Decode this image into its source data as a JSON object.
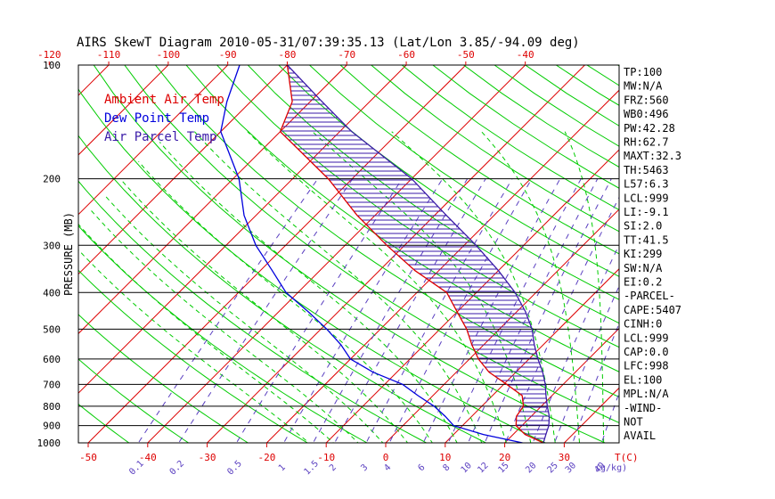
{
  "title": "AIRS SkewT Diagram 2010-05-31/07:39:35.13 (Lat/Lon 3.85/-94.09 deg)",
  "colors": {
    "background": "#ffffff",
    "isobar": "#000000",
    "isotherm": "#dd0000",
    "dry_adiabat": "#00cc00",
    "moist_adiabat": "#00cc00",
    "mixing_ratio": "#5a3fc0",
    "ambient": "#dd0000",
    "dewpoint": "#0000dd",
    "parcel": "#3a1aa8",
    "hatch": "#3a1aa8",
    "axis_text": "#000000",
    "temp_labels": "#dd0000",
    "mixing_labels": "#5a3fc0"
  },
  "chart_data": {
    "type": "line",
    "title": "AIRS SkewT Diagram 2010-05-31/07:39:35.13 (Lat/Lon 3.85/-94.09 deg)",
    "ylabel": "PRESSURE (MB)",
    "xlabel": "T(C)",
    "y_scale": "log",
    "ylim": [
      1000,
      100
    ],
    "pressure_ticks": [
      100,
      200,
      300,
      400,
      500,
      600,
      700,
      800,
      900,
      1000
    ],
    "bottom_temp_ticks": [
      -50,
      -40,
      -30,
      -20,
      -10,
      0,
      10,
      20,
      30
    ],
    "bottom_temp_label": "T(C)",
    "top_temp_ticks": [
      -120,
      -110,
      -100,
      -90,
      -80,
      -70,
      -60,
      -50,
      -40
    ],
    "mixing_ratio_ticks": [
      "0.1",
      "0.2",
      "0.5",
      "1",
      "1.5",
      "2",
      "3",
      "4",
      "6",
      "8",
      "10",
      "12",
      "15",
      "20",
      "25",
      "30",
      "40"
    ],
    "mixing_ratio_unit": "(g/kg)",
    "legend": [
      {
        "name": "Ambient Air Temp",
        "color": "#dd0000"
      },
      {
        "name": "Dew Point Temp",
        "color": "#0000dd"
      },
      {
        "name": "Air Parcel Temp",
        "color": "#3a1aa8"
      }
    ],
    "legend_position": "top-left",
    "grid": true,
    "series": [
      {
        "name": "Ambient Air Temp",
        "points": [
          {
            "p": 1000,
            "t": 26.5
          },
          {
            "p": 950,
            "t": 22.0
          },
          {
            "p": 900,
            "t": 19.0
          },
          {
            "p": 850,
            "t": 17.5
          },
          {
            "p": 800,
            "t": 17.0
          },
          {
            "p": 750,
            "t": 15.0
          },
          {
            "p": 700,
            "t": 10.5
          },
          {
            "p": 650,
            "t": 5.5
          },
          {
            "p": 600,
            "t": 1.5
          },
          {
            "p": 550,
            "t": -2.0
          },
          {
            "p": 500,
            "t": -5.5
          },
          {
            "p": 450,
            "t": -10.0
          },
          {
            "p": 400,
            "t": -15.0
          },
          {
            "p": 350,
            "t": -24.0
          },
          {
            "p": 300,
            "t": -33.0
          },
          {
            "p": 250,
            "t": -43.0
          },
          {
            "p": 200,
            "t": -54.0
          },
          {
            "p": 150,
            "t": -70.0
          },
          {
            "p": 125,
            "t": -73.0
          },
          {
            "p": 100,
            "t": -80.0
          }
        ]
      },
      {
        "name": "Dew Point Temp",
        "points": [
          {
            "p": 1000,
            "t": 23.0
          },
          {
            "p": 950,
            "t": 15.0
          },
          {
            "p": 900,
            "t": 8.5
          },
          {
            "p": 850,
            "t": 5.5
          },
          {
            "p": 800,
            "t": 2.0
          },
          {
            "p": 750,
            "t": -2.5
          },
          {
            "p": 700,
            "t": -7.0
          },
          {
            "p": 650,
            "t": -14.0
          },
          {
            "p": 600,
            "t": -20.0
          },
          {
            "p": 550,
            "t": -24.0
          },
          {
            "p": 500,
            "t": -29.0
          },
          {
            "p": 450,
            "t": -35.0
          },
          {
            "p": 400,
            "t": -42.0
          },
          {
            "p": 350,
            "t": -48.0
          },
          {
            "p": 300,
            "t": -55.0
          },
          {
            "p": 250,
            "t": -62.0
          },
          {
            "p": 200,
            "t": -69.0
          },
          {
            "p": 150,
            "t": -80.0
          },
          {
            "p": 125,
            "t": -84.0
          },
          {
            "p": 100,
            "t": -88.0
          }
        ]
      },
      {
        "name": "Air Parcel Temp",
        "points": [
          {
            "p": 1000,
            "t": 26.5
          },
          {
            "p": 950,
            "t": 25.5
          },
          {
            "p": 900,
            "t": 24.5
          },
          {
            "p": 850,
            "t": 23.0
          },
          {
            "p": 800,
            "t": 21.0
          },
          {
            "p": 750,
            "t": 19.0
          },
          {
            "p": 700,
            "t": 17.0
          },
          {
            "p": 650,
            "t": 14.5
          },
          {
            "p": 600,
            "t": 11.5
          },
          {
            "p": 550,
            "t": 8.5
          },
          {
            "p": 500,
            "t": 5.5
          },
          {
            "p": 450,
            "t": 1.5
          },
          {
            "p": 400,
            "t": -3.5
          },
          {
            "p": 350,
            "t": -10.0
          },
          {
            "p": 300,
            "t": -18.0
          },
          {
            "p": 250,
            "t": -28.0
          },
          {
            "p": 200,
            "t": -40.0
          },
          {
            "p": 150,
            "t": -58.0
          },
          {
            "p": 125,
            "t": -68.0
          },
          {
            "p": 100,
            "t": -80.0
          }
        ]
      }
    ]
  },
  "indices": [
    "TP:100",
    "MW:N/A",
    "FRZ:560",
    "WB0:496",
    "PW:42.28",
    "RH:62.7",
    "MAXT:32.3",
    "TH:5463",
    "L57:6.3",
    "LCL:999",
    "LI:-9.1",
    "SI:2.0",
    "TT:41.5",
    "KI:299",
    "SW:N/A",
    "EI:0.2",
    "-PARCEL-",
    "CAPE:5407",
    "CINH:0",
    "LCL:999",
    "CAP:0.0",
    "LFC:998",
    "EL:100",
    "MPL:N/A",
    "-WIND-",
    "NOT",
    "AVAIL"
  ]
}
